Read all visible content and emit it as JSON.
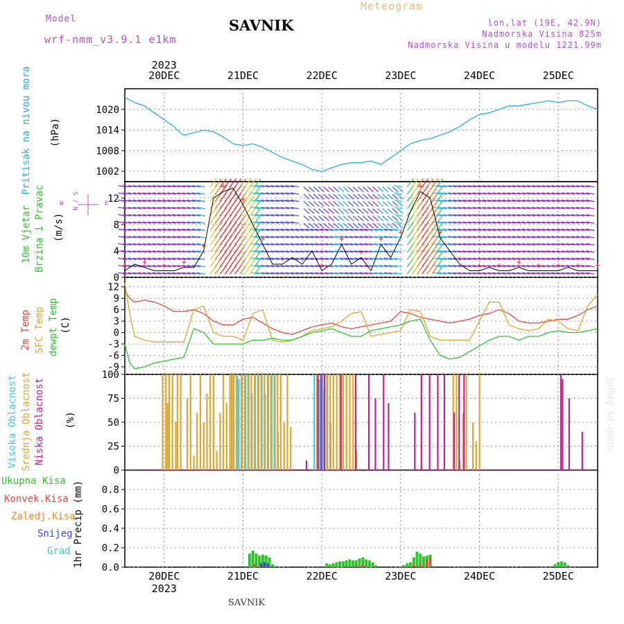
{
  "header": {
    "model_label": "Model",
    "model_name": "wrf-nmm_v3.9.1  e1km",
    "station": "SAVNIK",
    "product": "Meteogram",
    "coords": "lon,lat (19E, 42.9N)",
    "elevation": "Nadmorska Visina 825m",
    "model_elevation": "Nadmorska Visina u modelu 1221.99m",
    "footer_station": "SAVNIK",
    "watermark": "made by Angel"
  },
  "colors": {
    "pressure": "#29abe2",
    "temp2m": "#e8463c",
    "sfc": "#e0a52c",
    "dew": "#2ec42e",
    "high_cloud": "#3ec6e8",
    "mid_cloud": "#e0a52c",
    "low_cloud": "#c0208c",
    "wind_title": "#2ec42e",
    "purple": "#b050c8",
    "precip_total": "#2ec42e",
    "precip_conv": "#e8463c",
    "precip_frozen": "#f08a30",
    "precip_snow": "#4040e0",
    "precip_hail": "#2ecfc0"
  },
  "chart_data": [
    {
      "type": "line",
      "panel": "pressure",
      "ylabel_main": "Pritisak na nivou mora",
      "unit": "(hPa)",
      "x_hours": [
        0,
        6,
        12,
        18,
        24,
        30,
        33,
        36,
        42,
        48,
        54,
        60,
        66,
        72,
        78,
        84,
        90,
        96,
        102,
        108,
        114,
        120,
        126,
        132,
        138,
        144,
        150,
        156,
        162,
        168,
        174,
        180,
        186,
        192,
        198,
        204,
        210,
        216,
        222,
        228,
        234,
        240,
        246,
        252,
        258,
        264,
        270,
        276,
        282,
        288
      ],
      "y": [
        1023.5,
        1022,
        1021,
        1019,
        1017,
        1015,
        1013.5,
        1012.5,
        1013.2,
        1014,
        1013.5,
        1012,
        1010,
        1009.5,
        1010,
        1009,
        1007.5,
        1006,
        1005,
        1004,
        1002.5,
        1002,
        1003,
        1004,
        1004.5,
        1004.5,
        1005,
        1004,
        1006,
        1008,
        1010,
        1011,
        1011.5,
        1012.5,
        1013.5,
        1015,
        1017,
        1018.5,
        1019,
        1020,
        1021,
        1021,
        1021.5,
        1022,
        1022.5,
        1022,
        1022.5,
        1022.5,
        1021,
        1020
      ],
      "yticks": [
        1002,
        1008,
        1014,
        1020
      ],
      "ylim": [
        999,
        1026
      ]
    },
    {
      "type": "line",
      "panel": "wind",
      "ylabel_main": "10m Vjetar",
      "ylabel_sub": "Brzina i Pravac",
      "unit": "(m/s)",
      "compass": "N / S",
      "compass_w": "W",
      "compass_e": "E",
      "x_hours": [
        0,
        6,
        12,
        18,
        24,
        30,
        36,
        42,
        48,
        54,
        60,
        66,
        72,
        78,
        84,
        90,
        96,
        102,
        108,
        114,
        120,
        126,
        132,
        138,
        144,
        150,
        156,
        162,
        168,
        174,
        180,
        186,
        192,
        198,
        204,
        210,
        216,
        222,
        228,
        234,
        240,
        246,
        252,
        258,
        264,
        270,
        276,
        282,
        288
      ],
      "y": [
        1,
        2,
        1.5,
        1,
        1,
        1,
        1.5,
        1.5,
        4,
        12,
        13,
        13.5,
        11,
        8,
        5,
        2,
        2,
        3,
        2,
        4,
        1,
        2,
        5,
        2,
        3,
        1,
        5,
        3,
        6,
        10,
        13,
        12,
        6,
        4,
        2,
        1,
        1,
        1.5,
        1,
        1,
        1.5,
        1,
        1,
        1,
        1,
        1.5,
        1,
        1,
        1
      ],
      "yticks": [
        0,
        4,
        8,
        12
      ],
      "ylim": [
        0,
        14.5
      ]
    },
    {
      "type": "line",
      "panel": "temperature",
      "ylabel_a": "2m Temp",
      "ylabel_b": "SFC Temp",
      "ylabel_c": "dewpt Temp",
      "unit": "(C)",
      "x_hours": [
        0,
        3,
        6,
        12,
        18,
        24,
        30,
        36,
        42,
        48,
        54,
        60,
        66,
        72,
        78,
        84,
        90,
        96,
        102,
        108,
        114,
        120,
        126,
        132,
        138,
        144,
        150,
        156,
        162,
        168,
        174,
        180,
        186,
        192,
        198,
        204,
        210,
        216,
        222,
        228,
        234,
        240,
        246,
        252,
        258,
        264,
        270,
        276,
        282,
        288
      ],
      "series": [
        {
          "name": "2m Temp",
          "values": [
            11,
            9,
            8,
            8.5,
            8,
            7,
            5.5,
            5.5,
            6,
            5,
            3,
            2,
            2,
            3.5,
            4,
            2.5,
            1,
            0,
            -0.5,
            0.5,
            1.5,
            2,
            2.5,
            1.5,
            1,
            1.5,
            2,
            2.5,
            3,
            5.5,
            5,
            4,
            3.5,
            3,
            2.5,
            3,
            3.5,
            4.5,
            5,
            6,
            5,
            3,
            2.5,
            2.5,
            3,
            3.5,
            3.5,
            4.5,
            6,
            7
          ]
        },
        {
          "name": "SFC Temp",
          "values": [
            13,
            5,
            -1,
            -2,
            -2.5,
            -2.5,
            -2.5,
            -2.5,
            6,
            7,
            0,
            -1,
            -1,
            -2,
            5,
            6,
            -2,
            -2.5,
            -2,
            -1,
            0.5,
            1,
            1.5,
            3,
            5,
            5.5,
            -1,
            -0.5,
            0,
            0.5,
            6,
            5.5,
            -1,
            -2,
            -2,
            -2,
            -2,
            3,
            8,
            8,
            2,
            1,
            0.5,
            1,
            3.5,
            3,
            1,
            0.5,
            7,
            10
          ]
        },
        {
          "name": "dewpt Temp",
          "values": [
            -3,
            -8,
            -9.5,
            -9,
            -8,
            -7.5,
            -7,
            -6.5,
            1,
            0,
            -3,
            -3,
            -3,
            -3,
            -2,
            -2,
            -1.5,
            -2,
            -2,
            -1,
            0,
            0.5,
            1,
            0,
            -1,
            -1,
            0.5,
            1,
            1.5,
            2,
            3,
            3.5,
            -2,
            -6,
            -7,
            -6.5,
            -5,
            -3.5,
            -2,
            -1,
            -1,
            -2,
            -1,
            -1,
            0,
            0.5,
            0,
            0,
            0.5,
            1
          ]
        }
      ],
      "yticks": [
        -9,
        -6,
        -3,
        0,
        3,
        6,
        9,
        12
      ],
      "ylim": [
        -11,
        14.5
      ]
    },
    {
      "type": "bar",
      "panel": "clouds",
      "ylabel_a": "Visoka Oblacnost",
      "ylabel_b": "Srednja Oblacnost",
      "ylabel_c": "Niska Oblacnost",
      "unit": "(%)",
      "ylim": [
        0,
        100
      ],
      "yticks": [
        0,
        25,
        50,
        75,
        100
      ],
      "series": [
        {
          "name": "Visoka Oblacnost",
          "x_hours": [
            67,
            69,
            70,
            72,
            74,
            76,
            78,
            80,
            82,
            84,
            86,
            88,
            90,
            92,
            94,
            116,
            118,
            119,
            120,
            121,
            122,
            124,
            126
          ],
          "values": [
            100,
            100,
            95,
            100,
            100,
            100,
            80,
            100,
            100,
            100,
            80,
            100,
            100,
            100,
            40,
            100,
            100,
            95,
            100,
            100,
            85,
            100,
            50
          ]
        },
        {
          "name": "Srednja Oblacnost",
          "x_hours": [
            23,
            25,
            26,
            27,
            29,
            31,
            32,
            34,
            38,
            40,
            42,
            44,
            46,
            48,
            50,
            52,
            54,
            56,
            58,
            60,
            62,
            64,
            65,
            66,
            68,
            71,
            73,
            75,
            77,
            79,
            81,
            83,
            85,
            87,
            89,
            91,
            93,
            95,
            97,
            99,
            101,
            117,
            123,
            125,
            127,
            129,
            131,
            133,
            135,
            137,
            139,
            141,
            200,
            202,
            204,
            206,
            208,
            212,
            214,
            216
          ],
          "values": [
            100,
            100,
            70,
            100,
            100,
            50,
            100,
            100,
            75,
            100,
            15,
            60,
            100,
            50,
            80,
            100,
            100,
            20,
            60,
            100,
            70,
            100,
            100,
            100,
            100,
            100,
            100,
            100,
            100,
            100,
            100,
            100,
            100,
            100,
            100,
            100,
            100,
            100,
            50,
            100,
            45,
            100,
            100,
            100,
            100,
            100,
            100,
            100,
            100,
            100,
            100,
            20,
            100,
            100,
            10,
            60,
            100,
            50,
            30,
            100
          ]
        },
        {
          "name": "Niska Oblacnost",
          "x_hours": [
            110,
            117,
            119,
            121,
            131,
            140,
            148,
            152,
            157,
            160,
            176,
            180,
            185,
            190,
            194,
            200,
            203,
            206,
            265,
            266,
            270,
            278
          ],
          "values": [
            10,
            100,
            100,
            100,
            100,
            100,
            100,
            75,
            100,
            70,
            60,
            100,
            100,
            100,
            100,
            60,
            100,
            100,
            100,
            95,
            75,
            40
          ]
        }
      ]
    },
    {
      "type": "bar",
      "panel": "precip",
      "ylabel": "1hr Precip (mm)",
      "legend": [
        "Ukupna Kisa",
        "Konvek.Kisa",
        "Zaledj.Kisa",
        "Snijeg",
        "Grad"
      ],
      "ylim": [
        0,
        1
      ],
      "yticks": [
        0,
        0.2,
        0.4,
        0.6,
        0.8
      ],
      "series": [
        {
          "name": "Ukupna Kisa",
          "x_hours": [
            76,
            78,
            80,
            82,
            84,
            86,
            88,
            90,
            123,
            125,
            127,
            129,
            131,
            133,
            135,
            137,
            139,
            141,
            143,
            145,
            147,
            149,
            151,
            153,
            170,
            172,
            174,
            176,
            178,
            180,
            182,
            184,
            186,
            262,
            264,
            266,
            268,
            270
          ],
          "values": [
            0.14,
            0.17,
            0.14,
            0.12,
            0.13,
            0.12,
            0.1,
            0.03,
            0.04,
            0.03,
            0.04,
            0.05,
            0.06,
            0.06,
            0.07,
            0.08,
            0.07,
            0.07,
            0.09,
            0.1,
            0.08,
            0.07,
            0.05,
            0.02,
            0.02,
            0.04,
            0.05,
            0.1,
            0.16,
            0.14,
            0.11,
            0.12,
            0.13,
            0.03,
            0.05,
            0.06,
            0.05,
            0.02
          ]
        },
        {
          "name": "Konvek.Kisa",
          "x_hours": [
            79,
            84,
            141,
            145,
            176,
            180,
            184,
            186
          ],
          "values": [
            0.03,
            0.02,
            0.02,
            0.03,
            0.03,
            0.04,
            0.08,
            0.1
          ]
        },
        {
          "name": "Snijeg",
          "x_hours": [
            83,
            85,
            87
          ],
          "values": [
            0.04,
            0.05,
            0.04
          ]
        }
      ]
    }
  ],
  "time_axis": {
    "start_year": "2023",
    "days": [
      {
        "label": "20DEC",
        "hour": 24
      },
      {
        "label": "21DEC",
        "hour": 72
      },
      {
        "label": "22DEC",
        "hour": 120
      },
      {
        "label": "23DEC",
        "hour": 168
      },
      {
        "label": "24DEC",
        "hour": 216
      },
      {
        "label": "25DEC",
        "hour": 264
      }
    ],
    "range": [
      0,
      288
    ]
  }
}
